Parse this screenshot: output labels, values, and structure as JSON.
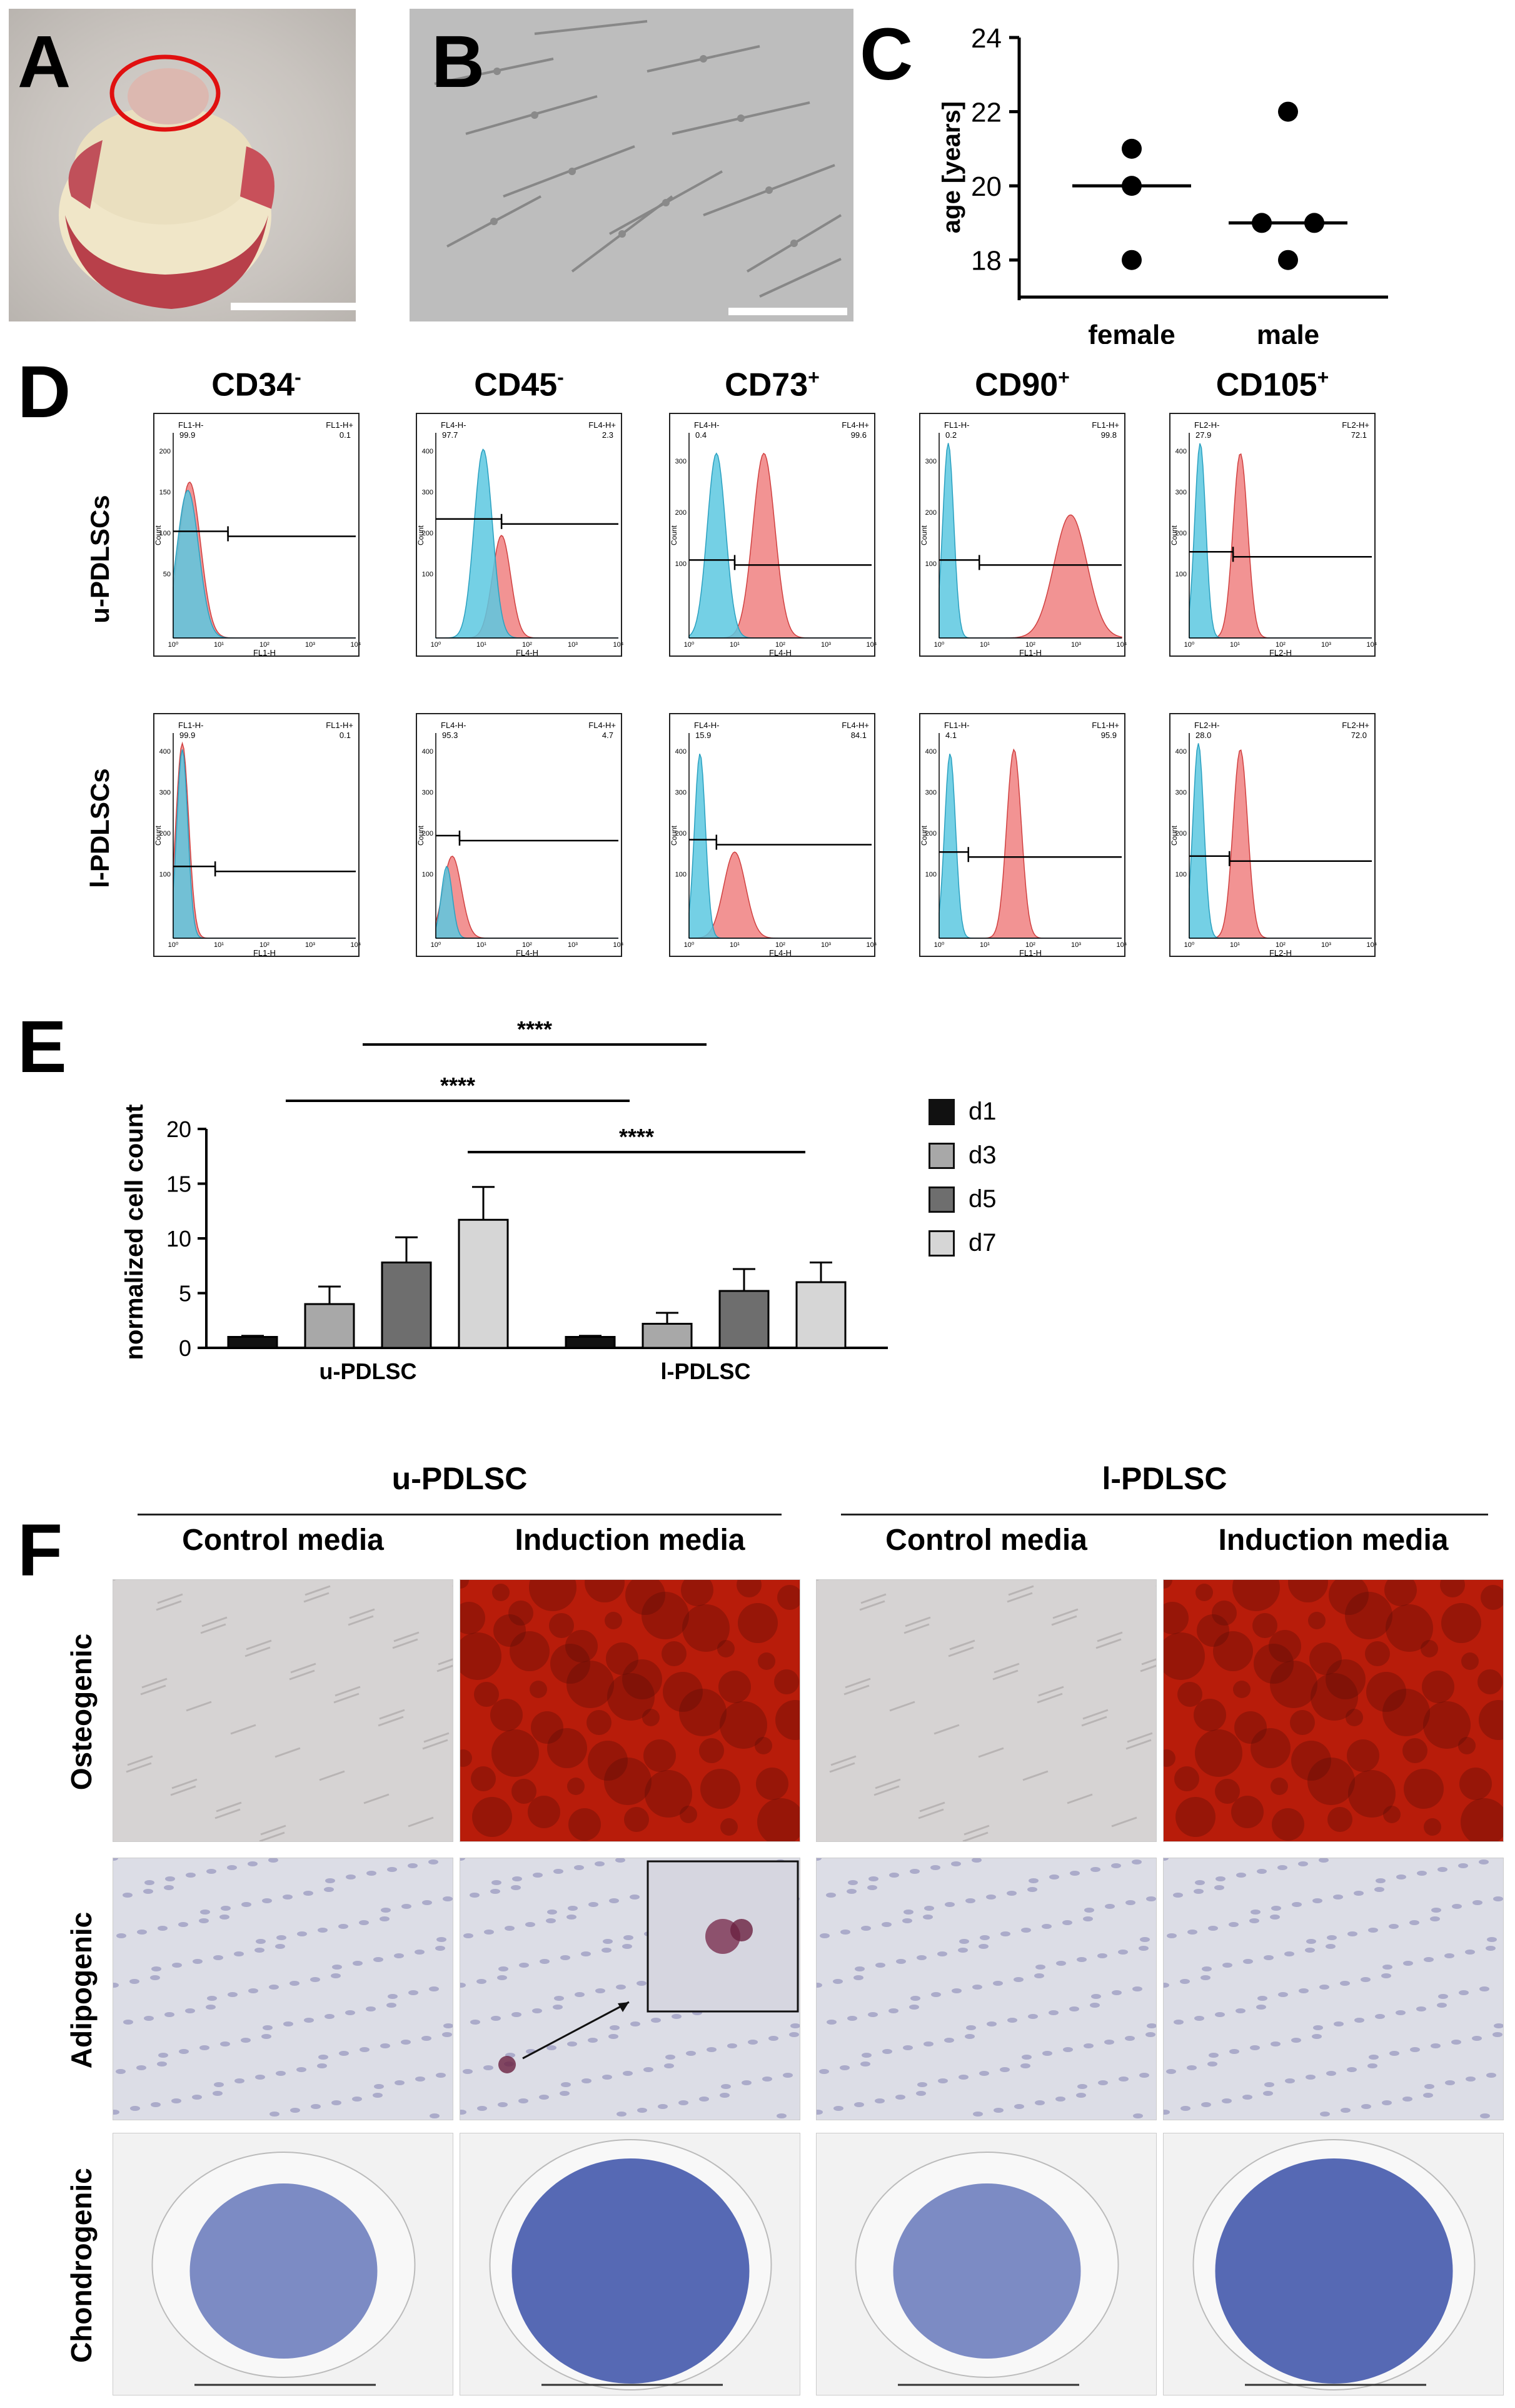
{
  "panels": {
    "A": "A",
    "B": "B",
    "C": "C",
    "D": "D",
    "E": "E",
    "F": "F"
  },
  "panelC": {
    "ylabel": "age [years]",
    "yticks": [
      "24",
      "22",
      "20",
      "18"
    ],
    "xcats": [
      "female",
      "male"
    ]
  },
  "chart_data": [
    {
      "id": "C",
      "type": "scatter",
      "title": "",
      "xlabel": "",
      "ylabel": "age [years]",
      "ylim": [
        17,
        24
      ],
      "categories": [
        "female",
        "male"
      ],
      "points": {
        "female": [
          21,
          20,
          18
        ],
        "male": [
          22,
          19,
          19,
          18
        ]
      },
      "medians": {
        "female": 20,
        "male": 19
      }
    },
    {
      "id": "E",
      "type": "bar",
      "title": "",
      "xlabel": "",
      "ylabel": "normalized cell count",
      "ylim": [
        0,
        20
      ],
      "yticks": [
        0,
        5,
        10,
        15,
        20
      ],
      "categories": [
        "u-PDLSC",
        "l-PDLSC"
      ],
      "series": [
        {
          "name": "d1",
          "values": [
            1.0,
            1.0
          ],
          "errors": [
            0.1,
            0.1
          ],
          "color": "#111111"
        },
        {
          "name": "d3",
          "values": [
            4.0,
            2.2
          ],
          "errors": [
            1.6,
            1.0
          ],
          "color": "#a8a8a8"
        },
        {
          "name": "d5",
          "values": [
            7.8,
            5.2
          ],
          "errors": [
            2.3,
            2.0
          ],
          "color": "#6e6e6e"
        },
        {
          "name": "d7",
          "values": [
            11.7,
            6.0
          ],
          "errors": [
            3.0,
            1.8
          ],
          "color": "#d6d6d6"
        }
      ],
      "significance": [
        {
          "label": "****",
          "from": "u-PDLSC d3",
          "to": "l-PDLSC d3"
        },
        {
          "label": "****",
          "from": "u-PDLSC d5",
          "to": "l-PDLSC d5"
        },
        {
          "label": "****",
          "from": "u-PDLSC d7",
          "to": "l-PDLSC d7"
        }
      ]
    }
  ],
  "panelE": {
    "ylabel": "normalized cell count",
    "yticks": [
      "20",
      "15",
      "10",
      "5",
      "0"
    ],
    "groups": [
      "u-PDLSC",
      "l-PDLSC"
    ],
    "legend": [
      "d1",
      "d3",
      "d5",
      "d7"
    ],
    "sig": [
      "****",
      "****",
      "****"
    ]
  },
  "flow": {
    "markers": [
      {
        "title": "CD34",
        "sup": "-"
      },
      {
        "title": "CD45",
        "sup": "-"
      },
      {
        "title": "CD73",
        "sup": "+"
      },
      {
        "title": "CD90",
        "sup": "+"
      },
      {
        "title": "CD105",
        "sup": "+"
      }
    ],
    "rows": [
      "u-PDLSCs",
      "l-PDLSCs"
    ],
    "ylabel": "Count",
    "plots": [
      [
        {
          "gl": "FL1-H-",
          "gr": "FL1-H+",
          "vl": "99.9",
          "vr": "0.1",
          "xl": "FL1-H",
          "yt": [
            "200",
            "150",
            "100",
            "50"
          ]
        },
        {
          "gl": "FL4-H-",
          "gr": "FL4-H+",
          "vl": "97.7",
          "vr": "2.3",
          "xl": "FL4-H",
          "yt": [
            "400",
            "300",
            "200",
            "100"
          ]
        },
        {
          "gl": "FL4-H-",
          "gr": "FL4-H+",
          "vl": "0.4",
          "vr": "99.6",
          "xl": "FL4-H",
          "yt": [
            "300",
            "200",
            "100"
          ]
        },
        {
          "gl": "FL1-H-",
          "gr": "FL1-H+",
          "vl": "0.2",
          "vr": "99.8",
          "xl": "FL1-H",
          "yt": [
            "300",
            "200",
            "100"
          ]
        },
        {
          "gl": "FL2-H-",
          "gr": "FL2-H+",
          "vl": "27.9",
          "vr": "72.1",
          "xl": "FL2-H",
          "yt": [
            "400",
            "300",
            "200",
            "100"
          ]
        }
      ],
      [
        {
          "gl": "FL1-H-",
          "gr": "FL1-H+",
          "vl": "99.9",
          "vr": "0.1",
          "xl": "FL1-H",
          "yt": [
            "400",
            "300",
            "200",
            "100"
          ]
        },
        {
          "gl": "FL4-H-",
          "gr": "FL4-H+",
          "vl": "95.3",
          "vr": "4.7",
          "xl": "FL4-H",
          "yt": [
            "400",
            "300",
            "200",
            "100"
          ]
        },
        {
          "gl": "FL4-H-",
          "gr": "FL4-H+",
          "vl": "15.9",
          "vr": "84.1",
          "xl": "FL4-H",
          "yt": [
            "400",
            "300",
            "200",
            "100"
          ]
        },
        {
          "gl": "FL1-H-",
          "gr": "FL1-H+",
          "vl": "4.1",
          "vr": "95.9",
          "xl": "FL1-H",
          "yt": [
            "400",
            "300",
            "200",
            "100"
          ]
        },
        {
          "gl": "FL2-H-",
          "gr": "FL2-H+",
          "vl": "28.0",
          "vr": "72.0",
          "xl": "FL2-H",
          "yt": [
            "400",
            "300",
            "200",
            "100"
          ]
        }
      ]
    ]
  },
  "panelF": {
    "groups": [
      "u-PDLSC",
      "l-PDLSC"
    ],
    "media": [
      "Control media",
      "Induction media",
      "Control media",
      "Induction media"
    ],
    "rows": [
      "Osteogenic",
      "Adipogenic",
      "Chondrogenic"
    ]
  },
  "colors": {
    "isotype": "#5cc8e0",
    "stained": "#f08080",
    "alizarin": "#b81c0a",
    "toluidine": "#3950a8"
  }
}
